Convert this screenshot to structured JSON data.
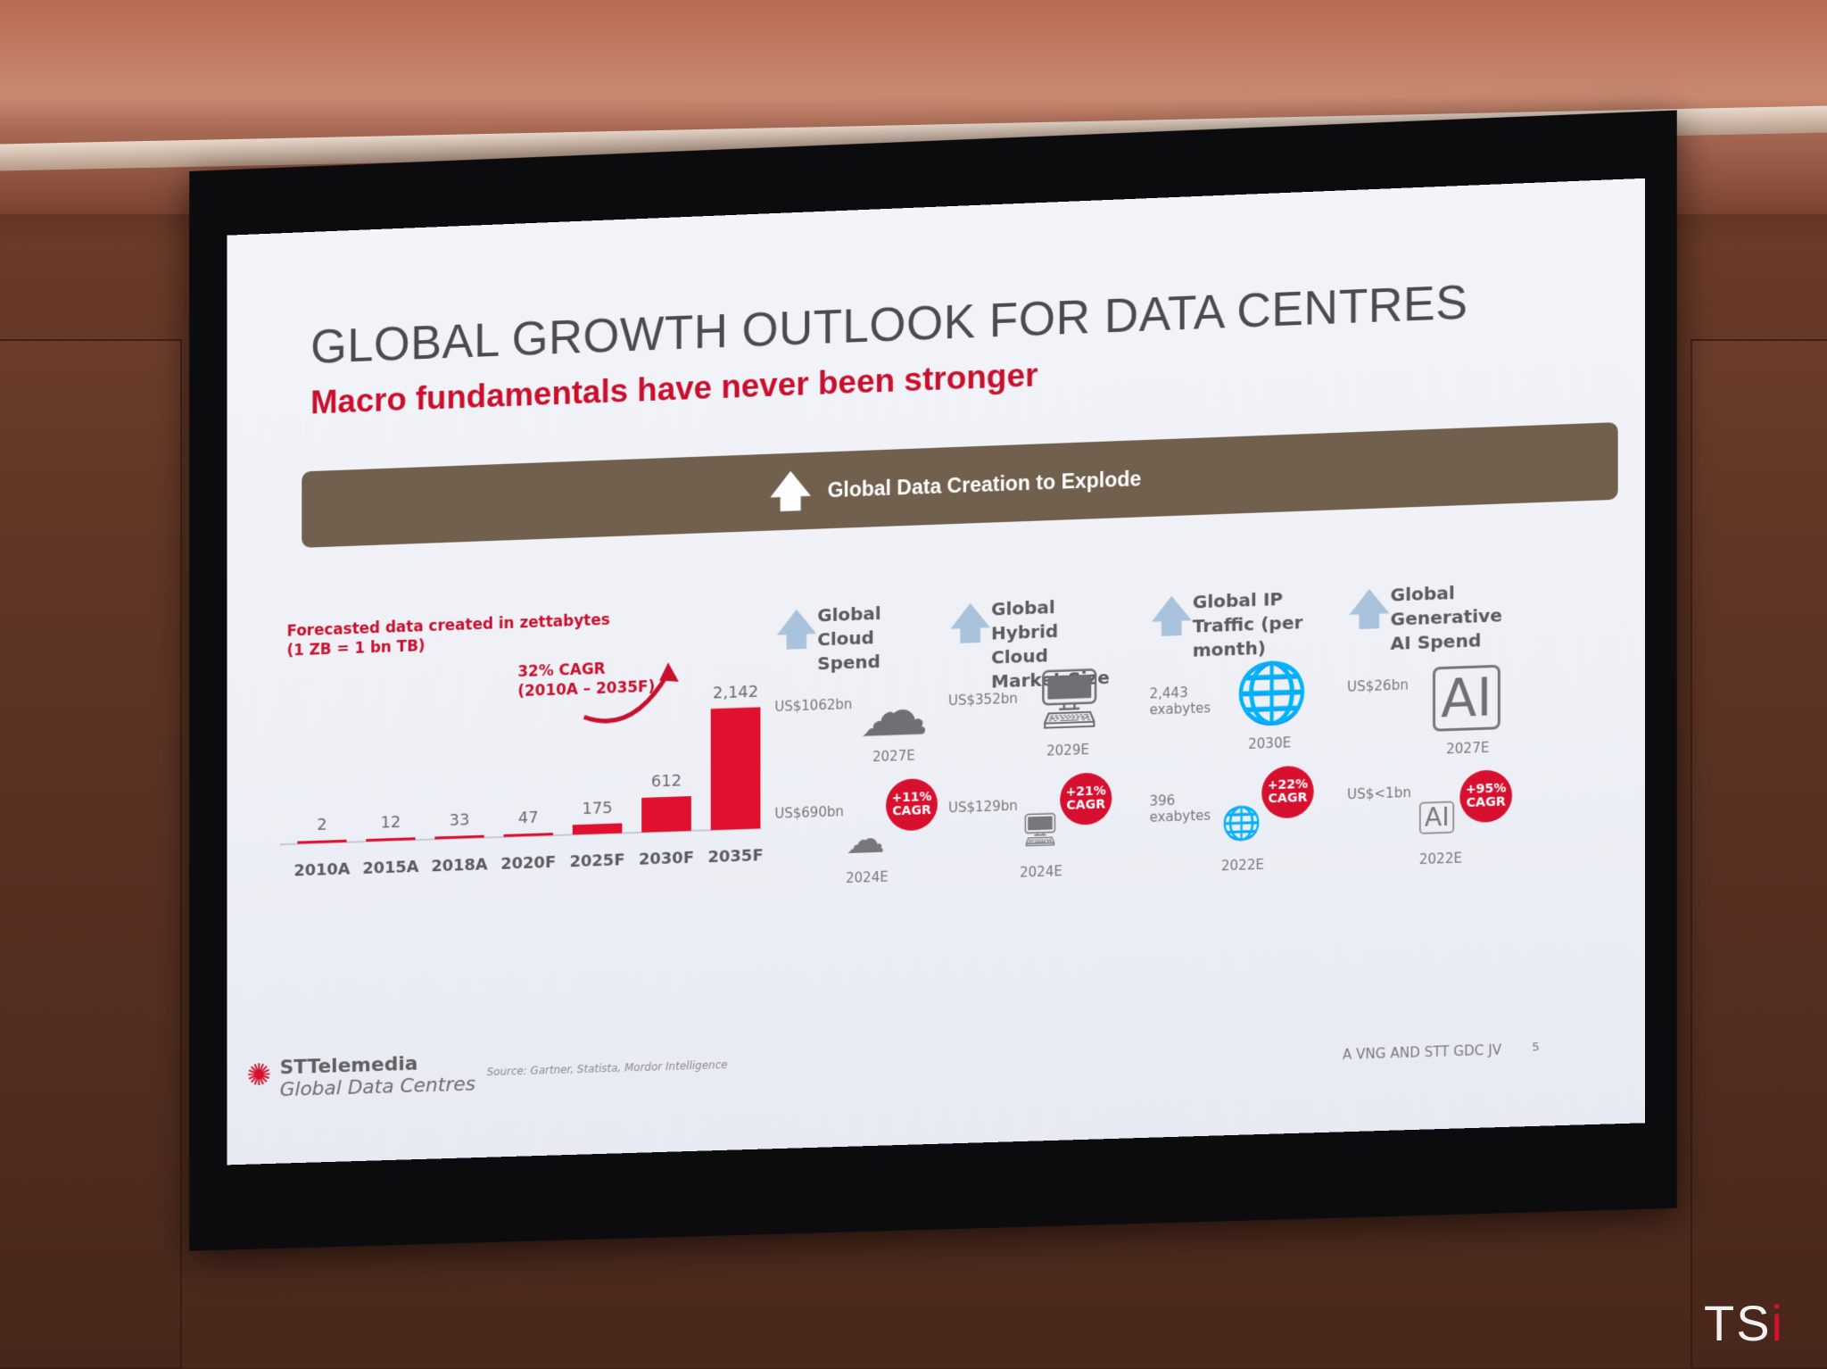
{
  "slide": {
    "title": "GLOBAL GROWTH OUTLOOK FOR DATA CENTRES",
    "subtitle": "Macro fundamentals have never been stronger",
    "banner": "Global Data Creation to Explode"
  },
  "chart_data": {
    "type": "bar",
    "title": "Forecasted data created in zettabytes",
    "subtitle": "(1 ZB = 1 bn TB)",
    "categories": [
      "2010A",
      "2015A",
      "2018A",
      "2020F",
      "2025F",
      "2030F",
      "2035F"
    ],
    "values": [
      2,
      12,
      33,
      47,
      175,
      612,
      2142
    ],
    "value_labels": [
      "2",
      "12",
      "33",
      "47",
      "175",
      "612",
      "2,142"
    ],
    "annotation": "32% CAGR (2010A – 2035F)",
    "annotation_line1": "32% CAGR",
    "annotation_line2": "(2010A – 2035F)",
    "bar_color": "#e0102f",
    "ylim": [
      0,
      2200
    ]
  },
  "metrics": [
    {
      "heading": "Global Cloud Spend",
      "top_value": "US$1062bn",
      "top_year": "2027E",
      "bottom_value": "US$690bn",
      "bottom_year": "2024E",
      "cagr_pct": "+11%",
      "cagr_label": "CAGR",
      "icon": "cloud-icon"
    },
    {
      "heading": "Global Hybrid Cloud Market Size",
      "top_value": "US$352bn",
      "top_year": "2029E",
      "bottom_value": "US$129bn",
      "bottom_year": "2024E",
      "cagr_pct": "+21%",
      "cagr_label": "CAGR",
      "icon": "hybrid-cloud-icon"
    },
    {
      "heading": "Global IP Traffic (per month)",
      "top_value": "2,443 exabytes",
      "top_year": "2030E",
      "bottom_value": "396 exabytes",
      "bottom_year": "2022E",
      "cagr_pct": "+22%",
      "cagr_label": "CAGR",
      "icon": "globe-icon"
    },
    {
      "heading": "Global Generative AI Spend",
      "top_value": "US$26bn",
      "top_year": "2027E",
      "bottom_value": "US$<1bn",
      "bottom_year": "2022E",
      "cagr_pct": "+95%",
      "cagr_label": "CAGR",
      "icon": "ai-chip-icon"
    }
  ],
  "footer": {
    "logo_name": "STTelemedia",
    "logo_sub": "Global Data Centres",
    "source": "Source: Gartner, Statista, Mordor Intelligence",
    "jv": "A VNG AND STT GDC JV",
    "page": "5"
  },
  "watermark": {
    "text": "TS",
    "accent_letter": "i"
  }
}
